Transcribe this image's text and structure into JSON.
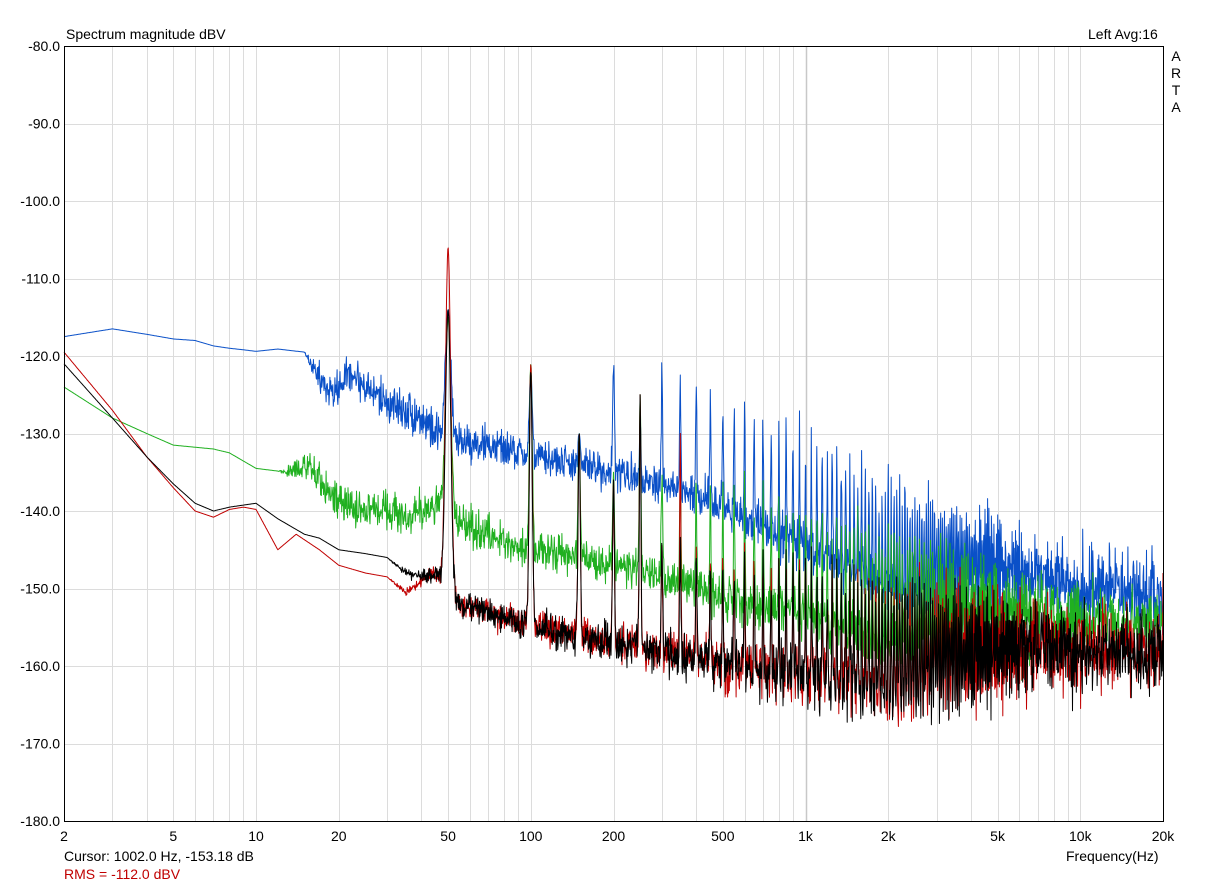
{
  "title": "Spectrum magnitude dBV",
  "channel_info": "Left  Avg:16",
  "brand": "A\nR\nT\nA",
  "cursor_readout": "Cursor:  1002.0 Hz, -153.18 dB",
  "rms_readout": "RMS = -112.0 dBV",
  "colors": {
    "background": "#ffffff",
    "grid": "#dcdcdc",
    "frame": "#000000",
    "cursor": "#c8c8c8",
    "rms_text": "#c00000"
  },
  "chart_data": {
    "type": "line",
    "title": "Spectrum magnitude dBV",
    "xlabel": "Frequency(Hz)",
    "ylabel": "",
    "x_scale": "log",
    "xlim": [
      2,
      20000
    ],
    "ylim": [
      -180,
      -80
    ],
    "grid": true,
    "x_ticks": [
      2,
      5,
      10,
      20,
      50,
      100,
      200,
      500,
      1000,
      2000,
      5000,
      10000,
      20000
    ],
    "x_tick_labels": [
      "2",
      "5",
      "10",
      "20",
      "50",
      "100",
      "200",
      "500",
      "1k",
      "2k",
      "5k",
      "10k",
      "20k"
    ],
    "y_ticks": [
      -80,
      -90,
      -100,
      -110,
      -120,
      -130,
      -140,
      -150,
      -160,
      -170,
      -180
    ],
    "y_tick_labels": [
      "-80.0",
      "-90.0",
      "-100.0",
      "-110.0",
      "-120.0",
      "-130.0",
      "-140.0",
      "-150.0",
      "-160.0",
      "-170.0",
      "-180.0"
    ],
    "cursor_x": 1002.0,
    "harmonic_fundamental": 50,
    "series": [
      {
        "color": "#0a50c8",
        "baseline": [
          [
            2,
            -117.5
          ],
          [
            3,
            -116.5
          ],
          [
            4,
            -117.2
          ],
          [
            5,
            -117.8
          ],
          [
            6,
            -118
          ],
          [
            7,
            -118.7
          ],
          [
            8,
            -119
          ],
          [
            9,
            -119.2
          ],
          [
            10,
            -119.4
          ],
          [
            12,
            -119.1
          ],
          [
            15,
            -119.5
          ],
          [
            17,
            -123
          ],
          [
            19,
            -125
          ],
          [
            22,
            -122
          ],
          [
            25,
            -124
          ],
          [
            30,
            -126
          ],
          [
            35,
            -127
          ],
          [
            40,
            -128
          ],
          [
            45,
            -130
          ],
          [
            60,
            -131
          ],
          [
            80,
            -132
          ],
          [
            100,
            -133
          ],
          [
            150,
            -134
          ],
          [
            200,
            -135
          ],
          [
            300,
            -136.5
          ],
          [
            500,
            -139.5
          ],
          [
            700,
            -142
          ],
          [
            1000,
            -144.5
          ],
          [
            2000,
            -150
          ],
          [
            5000,
            -155.5
          ],
          [
            10000,
            -158.5
          ],
          [
            20000,
            -160.5
          ]
        ],
        "noise": [
          [
            2,
            0
          ],
          [
            15,
            0
          ],
          [
            17,
            1.5
          ],
          [
            40,
            2
          ],
          [
            100,
            1.5
          ],
          [
            300,
            1.8
          ],
          [
            1000,
            2.3
          ],
          [
            5000,
            3
          ],
          [
            20000,
            3.5
          ]
        ],
        "peaks": [
          [
            50,
            -114
          ],
          [
            100,
            -122
          ],
          [
            150,
            -130
          ],
          [
            250,
            -128
          ]
        ]
      },
      {
        "color": "#20b020",
        "baseline": [
          [
            2,
            -124
          ],
          [
            3,
            -128
          ],
          [
            4,
            -130
          ],
          [
            5,
            -131.5
          ],
          [
            7,
            -132
          ],
          [
            8,
            -132.5
          ],
          [
            10,
            -134.5
          ],
          [
            13,
            -135
          ],
          [
            15,
            -134
          ],
          [
            17,
            -136
          ],
          [
            20,
            -139
          ],
          [
            25,
            -140
          ],
          [
            30,
            -139.5
          ],
          [
            35,
            -141
          ],
          [
            40,
            -140
          ],
          [
            45,
            -139
          ],
          [
            60,
            -142
          ],
          [
            80,
            -144
          ],
          [
            100,
            -145
          ],
          [
            150,
            -146
          ],
          [
            200,
            -147
          ],
          [
            300,
            -148.5
          ],
          [
            500,
            -151
          ],
          [
            1000,
            -153.5
          ],
          [
            2000,
            -157
          ],
          [
            5000,
            -161
          ],
          [
            10000,
            -163
          ],
          [
            20000,
            -164.5
          ]
        ],
        "noise": [
          [
            2,
            0
          ],
          [
            12,
            0
          ],
          [
            15,
            1.5
          ],
          [
            40,
            1.8
          ],
          [
            200,
            1.5
          ],
          [
            1000,
            2.3
          ],
          [
            5000,
            2.8
          ],
          [
            20000,
            3.2
          ]
        ],
        "peaks": [
          [
            50,
            -115
          ],
          [
            100,
            -121
          ],
          [
            150,
            -130
          ],
          [
            200,
            -135
          ],
          [
            250,
            -125
          ]
        ]
      },
      {
        "color": "#c00000",
        "baseline": [
          [
            2,
            -119.5
          ],
          [
            3,
            -127
          ],
          [
            4,
            -133
          ],
          [
            5,
            -137
          ],
          [
            6,
            -140
          ],
          [
            7,
            -140.8
          ],
          [
            8,
            -139.8
          ],
          [
            9,
            -139.5
          ],
          [
            10,
            -139.8
          ],
          [
            12,
            -145
          ],
          [
            14,
            -143
          ],
          [
            17,
            -145
          ],
          [
            20,
            -147
          ],
          [
            25,
            -148
          ],
          [
            30,
            -148.5
          ],
          [
            35,
            -150.5
          ],
          [
            40,
            -149
          ],
          [
            45,
            -148
          ],
          [
            55,
            -152
          ],
          [
            70,
            -153
          ],
          [
            100,
            -155
          ],
          [
            200,
            -157
          ],
          [
            300,
            -158
          ],
          [
            500,
            -160
          ],
          [
            1000,
            -161.5
          ],
          [
            2000,
            -163.5
          ],
          [
            5000,
            -165.5
          ],
          [
            10000,
            -167
          ],
          [
            20000,
            -168
          ]
        ],
        "noise": [
          [
            2,
            0
          ],
          [
            30,
            0
          ],
          [
            50,
            1
          ],
          [
            100,
            1.5
          ],
          [
            300,
            2
          ],
          [
            1000,
            2.8
          ],
          [
            5000,
            3.4
          ],
          [
            20000,
            3.6
          ]
        ],
        "peaks": [
          [
            50,
            -106
          ],
          [
            100,
            -121
          ],
          [
            150,
            -130
          ],
          [
            200,
            -136
          ],
          [
            250,
            -125
          ],
          [
            350,
            -130
          ],
          [
            5000,
            -148
          ],
          [
            20000,
            -148
          ]
        ]
      },
      {
        "color": "#000000",
        "baseline": [
          [
            2,
            -121
          ],
          [
            3,
            -128
          ],
          [
            4,
            -133
          ],
          [
            5,
            -136.5
          ],
          [
            6,
            -139
          ],
          [
            7,
            -140
          ],
          [
            8,
            -139.5
          ],
          [
            10,
            -139
          ],
          [
            12,
            -141
          ],
          [
            15,
            -143
          ],
          [
            17,
            -143.5
          ],
          [
            20,
            -145
          ],
          [
            25,
            -145.5
          ],
          [
            30,
            -146
          ],
          [
            35,
            -148
          ],
          [
            40,
            -148.5
          ],
          [
            45,
            -148
          ],
          [
            55,
            -152
          ],
          [
            70,
            -153
          ],
          [
            100,
            -155
          ],
          [
            200,
            -157
          ],
          [
            300,
            -158
          ],
          [
            500,
            -160
          ],
          [
            1000,
            -161.5
          ],
          [
            2000,
            -163.5
          ],
          [
            5000,
            -165.5
          ],
          [
            10000,
            -167
          ],
          [
            20000,
            -168
          ]
        ],
        "noise": [
          [
            2,
            0
          ],
          [
            30,
            0
          ],
          [
            50,
            1
          ],
          [
            100,
            1.5
          ],
          [
            300,
            2
          ],
          [
            1000,
            2.8
          ],
          [
            5000,
            3.4
          ],
          [
            20000,
            3.6
          ]
        ],
        "peaks": [
          [
            50,
            -114
          ],
          [
            100,
            -122
          ],
          [
            150,
            -130
          ],
          [
            200,
            -136
          ],
          [
            250,
            -125
          ]
        ]
      }
    ]
  }
}
